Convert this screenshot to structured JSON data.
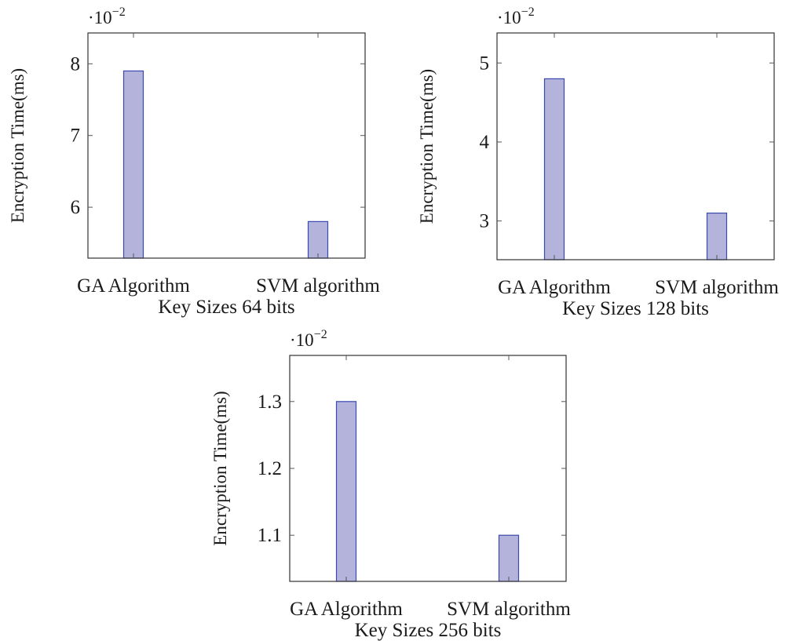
{
  "colors": {
    "bar_fill": "#b3b3dc",
    "bar_stroke": "#3a4bb0",
    "frame": "#333333"
  },
  "chart_data": [
    {
      "type": "bar",
      "categories": [
        "GA Algorithm",
        "SVM algorithm"
      ],
      "values": [
        0.079,
        0.058
      ],
      "xlabel": "Key Sizes 64 bits",
      "ylabel": "Encryption Time(ms)",
      "yticks": [
        0.06,
        0.07,
        0.08
      ],
      "ytick_labels": [
        "6",
        "7",
        "8"
      ],
      "scale_label": {
        "base": "·10",
        "exp": "−2"
      },
      "ylim": [
        0.0529,
        0.0843
      ],
      "grid": false
    },
    {
      "type": "bar",
      "categories": [
        "GA Algorithm",
        "SVM algorithm"
      ],
      "values": [
        0.048,
        0.031
      ],
      "xlabel": "Key Sizes 128 bits",
      "ylabel": "Encryption Time(ms)",
      "yticks": [
        0.03,
        0.04,
        0.05
      ],
      "ytick_labels": [
        "3",
        "4",
        "5"
      ],
      "scale_label": {
        "base": "·10",
        "exp": "−2"
      },
      "ylim": [
        0.0251,
        0.0538
      ],
      "grid": false
    },
    {
      "type": "bar",
      "categories": [
        "GA Algorithm",
        "SVM algorithm"
      ],
      "values": [
        0.013,
        0.011
      ],
      "xlabel": "Key Sizes 256 bits",
      "ylabel": "Encryption Time(ms)",
      "yticks": [
        0.011,
        0.012,
        0.013
      ],
      "ytick_labels": [
        "1.1",
        "1.2",
        "1.3"
      ],
      "scale_label": {
        "base": "·10",
        "exp": "−2"
      },
      "ylim": [
        0.01031,
        0.01369
      ],
      "grid": false
    }
  ]
}
